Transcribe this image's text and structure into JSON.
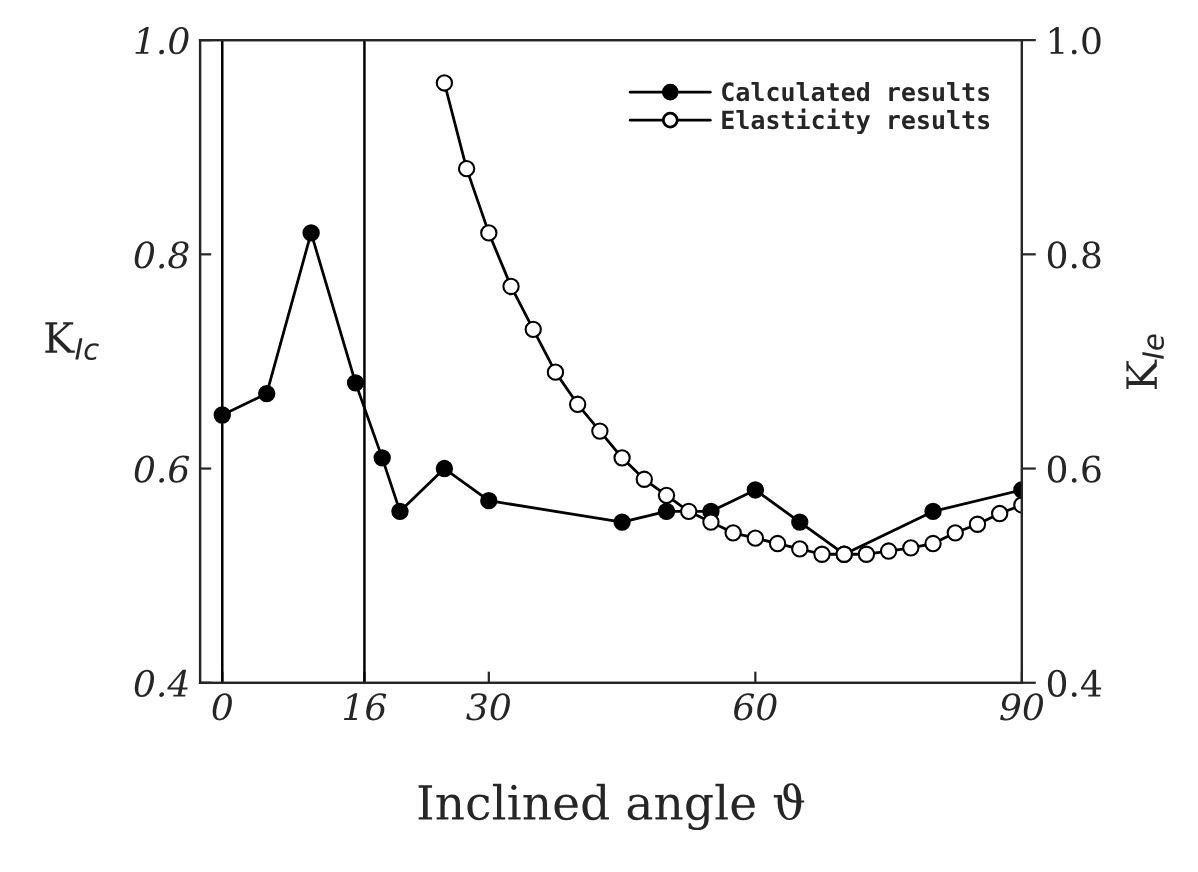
{
  "chart_data": {
    "type": "line",
    "xlabel": "Inclined angle ϑ",
    "ylabel": "K$_{Ic}$",
    "y2label": "K$_{Ie}$",
    "xlim": [
      -2.5,
      90
    ],
    "xticks": [
      0,
      16,
      30,
      60,
      90
    ],
    "ylim": [
      0.4,
      1.0
    ],
    "yticks": [
      0.4,
      0.6,
      0.8,
      {
        "value": 1.0,
        "label": "1.0"
      }
    ],
    "y2lim": [
      0.4,
      1.0
    ],
    "y2ticks": [
      0.4,
      0.6,
      0.8,
      {
        "value": 1.0,
        "label": "1.0"
      }
    ],
    "ref_lines": [
      {
        "axis": "x",
        "value": 0,
        "color": "#000000"
      },
      {
        "axis": "x",
        "value": 16,
        "color": "#000000"
      }
    ],
    "legend": "top right",
    "grid": false,
    "series": [
      {
        "name": "Calculated results",
        "color": "#000000",
        "marker": "circle",
        "x": [
          0,
          5,
          10,
          15,
          18,
          20,
          25,
          30,
          45,
          50,
          55,
          60,
          65,
          70,
          80,
          90
        ],
        "values": [
          0.65,
          0.67,
          0.82,
          0.68,
          0.61,
          0.56,
          0.6,
          0.57,
          0.55,
          0.56,
          0.56,
          0.58,
          0.55,
          0.52,
          0.56,
          0.58
        ]
      },
      {
        "name": "Elasticity results",
        "color": "#000000",
        "marker": "circle",
        "x": [
          25,
          27.5,
          30,
          32.5,
          35,
          37.5,
          40,
          42.5,
          45,
          47.5,
          50,
          52.5,
          55,
          57.5,
          60,
          62.5,
          65,
          67.5,
          70,
          72.5,
          75,
          77.5,
          80,
          82.5,
          85,
          87.5,
          90
        ],
        "values": [
          0.96,
          0.88,
          0.82,
          0.77,
          0.73,
          0.69,
          0.66,
          0.635,
          0.61,
          0.59,
          0.575,
          0.56,
          0.55,
          0.54,
          0.535,
          0.53,
          0.525,
          0.52,
          0.52,
          0.52,
          0.523,
          0.526,
          0.53,
          0.54,
          0.548,
          0.558,
          0.566
        ]
      }
    ]
  }
}
